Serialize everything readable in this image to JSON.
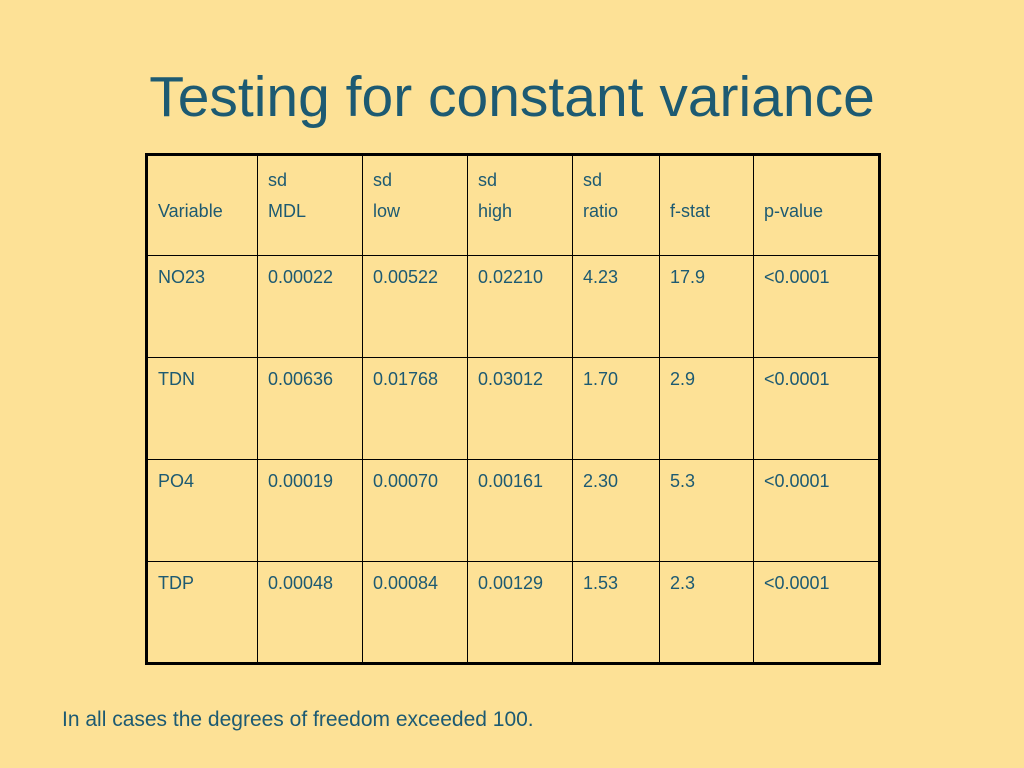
{
  "slide": {
    "title": "Testing for constant variance",
    "table": {
      "header": [
        [
          "Variable"
        ],
        [
          "sd",
          "MDL"
        ],
        [
          "sd",
          "low"
        ],
        [
          "sd",
          "high"
        ],
        [
          "sd",
          "ratio"
        ],
        [
          "f-stat"
        ],
        [
          "p-value"
        ]
      ],
      "rows": [
        [
          "NO23",
          "0.00022",
          "0.00522",
          "0.02210",
          "4.23",
          "17.9",
          "<0.0001"
        ],
        [
          "TDN",
          "0.00636",
          "0.01768",
          "0.03012",
          "1.70",
          "2.9",
          "<0.0001"
        ],
        [
          "PO4",
          "0.00019",
          "0.00070",
          "0.00161",
          "2.30",
          "5.3",
          "<0.0001"
        ],
        [
          "TDP",
          "0.00048",
          "0.00084",
          "0.00129",
          "1.53",
          "2.3",
          "<0.0001"
        ]
      ]
    },
    "footnote": "In all cases the degrees of freedom exceeded 100."
  }
}
